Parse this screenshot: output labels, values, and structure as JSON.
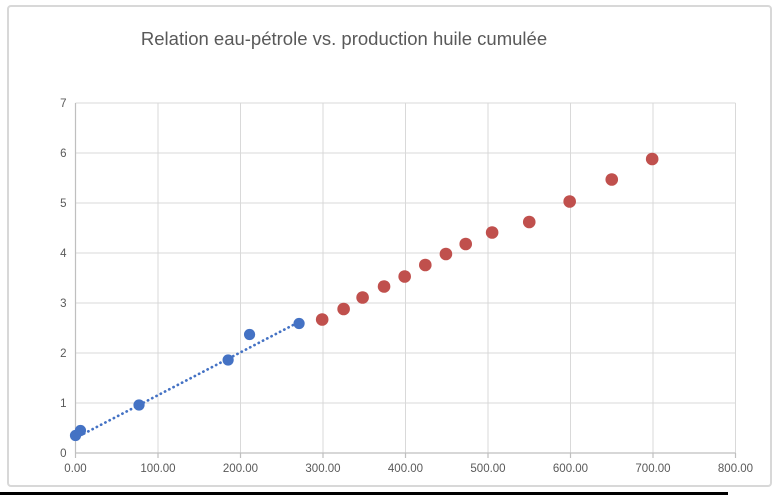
{
  "page": {
    "background_color": "#ffffff",
    "bottom_rule_color": "#000000"
  },
  "chart": {
    "title": "Relation eau-pétrole vs. production huile cumulée",
    "title_color": "#595959",
    "frame_border_color": "#D8D8D8",
    "plot_background": "#ffffff",
    "gridline_color": "#D9D9D9",
    "axis_line_color": "#BFBFBF",
    "tick_label_color": "#595959"
  },
  "chart_data": {
    "type": "scatter",
    "title": "Relation eau-pétrole vs. production huile cumulée",
    "xlabel": "",
    "ylabel": "",
    "xlim": [
      0,
      800
    ],
    "ylim": [
      0,
      7
    ],
    "x_tick_labels": [
      "0.00",
      "100.00",
      "200.00",
      "300.00",
      "400.00",
      "500.00",
      "600.00",
      "700.00",
      "800.00"
    ],
    "x_tick_values": [
      0,
      100,
      200,
      300,
      400,
      500,
      600,
      700,
      800
    ],
    "y_tick_labels": [
      "0",
      "1",
      "2",
      "3",
      "4",
      "5",
      "6",
      "7"
    ],
    "y_tick_values": [
      0,
      1,
      2,
      3,
      4,
      5,
      6,
      7
    ],
    "grid": true,
    "legend": false,
    "series": [
      {
        "name": "serie-bleue",
        "color": "#4472C4",
        "marker_radius": 5.6,
        "points": [
          [
            0,
            0.35
          ],
          [
            6,
            0.45
          ],
          [
            77,
            0.96
          ],
          [
            185,
            1.86
          ],
          [
            211,
            2.37
          ],
          [
            271,
            2.59
          ]
        ]
      },
      {
        "name": "serie-rouge",
        "color": "#C0504D",
        "marker_radius": 6.3,
        "points": [
          [
            299,
            2.67
          ],
          [
            325,
            2.88
          ],
          [
            348,
            3.11
          ],
          [
            374,
            3.33
          ],
          [
            399,
            3.53
          ],
          [
            424,
            3.76
          ],
          [
            449,
            3.98
          ],
          [
            473,
            4.18
          ],
          [
            505,
            4.41
          ],
          [
            550,
            4.62
          ],
          [
            599,
            5.03
          ],
          [
            650,
            5.47
          ],
          [
            699,
            5.88
          ]
        ]
      }
    ],
    "trendline": {
      "series": "serie-bleue",
      "style": "dotted",
      "color": "#4472C4",
      "x1": 0,
      "y1": 0.3,
      "x2": 272,
      "y2": 2.63
    }
  }
}
